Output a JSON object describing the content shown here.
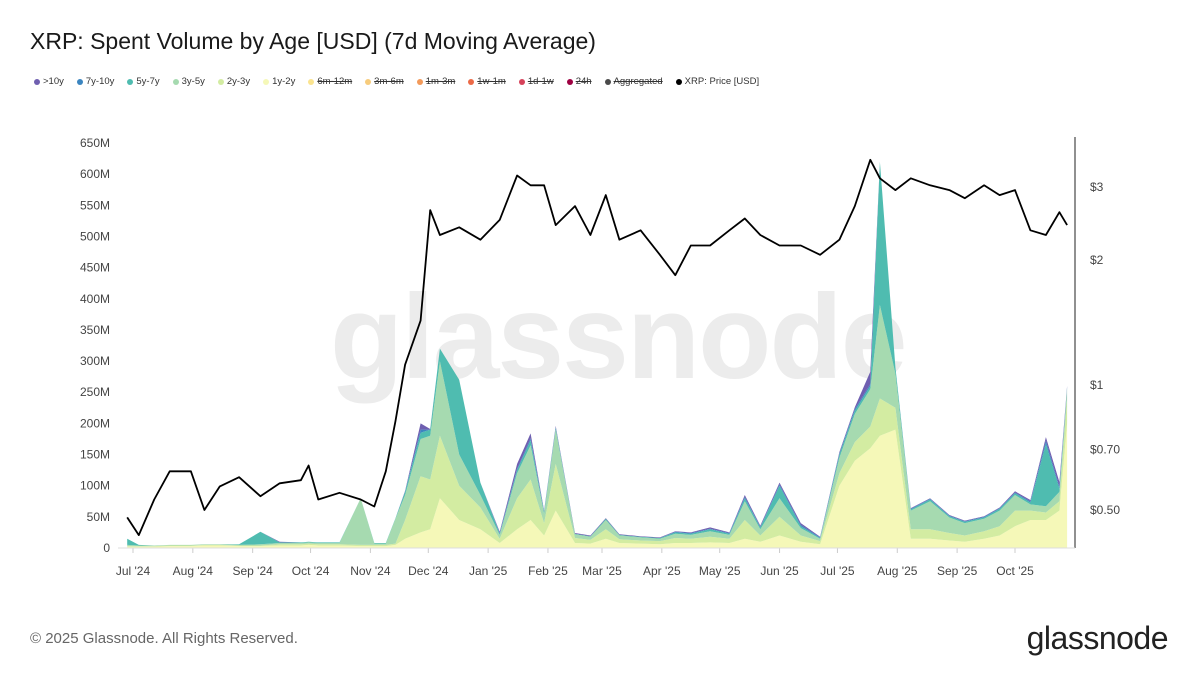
{
  "title": "XRP: Spent Volume by Age [USD] (7d Moving Average)",
  "legend": [
    {
      "label": ">10y",
      "color": "#6f5fb0",
      "active": true
    },
    {
      "label": "7y-10y",
      "color": "#3b85c0",
      "active": true
    },
    {
      "label": "5y-7y",
      "color": "#4fbcb0",
      "active": true
    },
    {
      "label": "3y-5y",
      "color": "#a6dab0",
      "active": true
    },
    {
      "label": "2y-3y",
      "color": "#d3eca2",
      "active": true
    },
    {
      "label": "1y-2y",
      "color": "#f5f8b8",
      "active": true
    },
    {
      "label": "6m-12m",
      "color": "#fbe48f",
      "active": false
    },
    {
      "label": "3m-6m",
      "color": "#f7cc7c",
      "active": false
    },
    {
      "label": "1m-3m",
      "color": "#f39a5a",
      "active": false
    },
    {
      "label": "1w-1m",
      "color": "#ec6a47",
      "active": false
    },
    {
      "label": "1d-1w",
      "color": "#d6425a",
      "active": false
    },
    {
      "label": "24h",
      "color": "#9e0142",
      "active": false
    },
    {
      "label": "Aggregated",
      "color": "#4a4a4a",
      "active": false
    },
    {
      "label": "XRP: Price [USD]",
      "color": "#000000",
      "active": true
    }
  ],
  "watermark": "glassnode",
  "footer": "© 2025 Glassnode. All Rights Reserved.",
  "logo": "glassnode",
  "chart_data": {
    "type": "area",
    "stacked": true,
    "title": "XRP: Spent Volume by Age [USD] (7d Moving Average)",
    "x": [
      "2024-06-28",
      "2024-07-04",
      "2024-07-12",
      "2024-07-20",
      "2024-07-31",
      "2024-08-07",
      "2024-08-15",
      "2024-08-25",
      "2024-09-05",
      "2024-09-15",
      "2024-09-26",
      "2024-09-30",
      "2024-10-05",
      "2024-10-16",
      "2024-10-27",
      "2024-11-03",
      "2024-11-09",
      "2024-11-14",
      "2024-11-19",
      "2024-11-27",
      "2024-12-02",
      "2024-12-07",
      "2024-12-17",
      "2024-12-28",
      "2025-01-07",
      "2025-01-16",
      "2025-01-23",
      "2025-01-30",
      "2025-02-05",
      "2025-02-15",
      "2025-02-23",
      "2025-03-03",
      "2025-03-10",
      "2025-03-21",
      "2025-03-31",
      "2025-04-08",
      "2025-04-16",
      "2025-04-26",
      "2025-05-06",
      "2025-05-14",
      "2025-05-22",
      "2025-06-01",
      "2025-06-12",
      "2025-06-22",
      "2025-07-02",
      "2025-07-10",
      "2025-07-18",
      "2025-07-23",
      "2025-07-31",
      "2025-08-08",
      "2025-08-18",
      "2025-08-28",
      "2025-09-05",
      "2025-09-15",
      "2025-09-23",
      "2025-10-01",
      "2025-10-09",
      "2025-10-17",
      "2025-10-24",
      "2025-10-28"
    ],
    "x_ticks": [
      "Jul '24",
      "Aug '24",
      "Sep '24",
      "Oct '24",
      "Nov '24",
      "Dec '24",
      "Jan '25",
      "Feb '25",
      "Mar '25",
      "Apr '25",
      "May '25",
      "Jun '25",
      "Jul '25",
      "Aug '25",
      "Sep '25",
      "Oct '25"
    ],
    "x_tick_dates": [
      "2024-07-01",
      "2024-08-01",
      "2024-09-01",
      "2024-10-01",
      "2024-11-01",
      "2024-12-01",
      "2025-01-01",
      "2025-02-01",
      "2025-03-01",
      "2025-04-01",
      "2025-05-01",
      "2025-06-01",
      "2025-07-01",
      "2025-08-01",
      "2025-09-01",
      "2025-10-01"
    ],
    "y_left": {
      "unit": "USD",
      "range": [
        0,
        650000000
      ],
      "ticks": [
        "0",
        "50M",
        "100M",
        "150M",
        "200M",
        "250M",
        "300M",
        "350M",
        "400M",
        "450M",
        "500M",
        "550M",
        "600M",
        "650M"
      ]
    },
    "y_right": {
      "scale": "log",
      "range": [
        0.405,
        3.96
      ],
      "ticks": [
        {
          "label": "$0.50",
          "value": 0.5
        },
        {
          "label": "$0.70",
          "value": 0.7
        },
        {
          "label": "$1",
          "value": 1
        },
        {
          "label": "$2",
          "value": 2
        },
        {
          "label": "$3",
          "value": 3
        }
      ]
    },
    "grid": false,
    "series_unit": "millions USD",
    "series": [
      {
        "name": "1y-2y",
        "values": [
          2,
          2,
          2,
          3,
          3,
          4,
          4,
          3,
          3,
          4,
          4,
          5,
          4,
          4,
          3,
          3,
          3,
          5,
          15,
          25,
          30,
          80,
          45,
          30,
          8,
          30,
          45,
          20,
          60,
          8,
          7,
          15,
          8,
          7,
          6,
          8,
          8,
          9,
          8,
          15,
          10,
          20,
          10,
          6,
          100,
          140,
          160,
          180,
          190,
          15,
          15,
          12,
          10,
          15,
          20,
          35,
          45,
          45,
          60,
          200
        ]
      },
      {
        "name": "2y-3y",
        "values": [
          1,
          1,
          1,
          1,
          1,
          1,
          1,
          1,
          1,
          2,
          2,
          2,
          2,
          2,
          2,
          2,
          2,
          2,
          30,
          90,
          80,
          100,
          55,
          35,
          7,
          50,
          65,
          20,
          75,
          8,
          6,
          15,
          6,
          5,
          5,
          8,
          7,
          9,
          7,
          30,
          10,
          30,
          10,
          5,
          20,
          30,
          35,
          60,
          35,
          15,
          15,
          12,
          10,
          12,
          15,
          25,
          15,
          12,
          15,
          40
        ]
      },
      {
        "name": "3y-5y",
        "values": [
          2,
          1,
          1,
          1,
          1,
          1,
          1,
          1,
          2,
          2,
          2,
          2,
          2,
          2,
          75,
          2,
          2,
          40,
          40,
          60,
          70,
          120,
          50,
          20,
          6,
          40,
          55,
          15,
          55,
          6,
          5,
          15,
          6,
          5,
          4,
          7,
          6,
          9,
          6,
          30,
          10,
          30,
          12,
          4,
          25,
          45,
          60,
          150,
          55,
          30,
          45,
          25,
          20,
          20,
          25,
          25,
          10,
          10,
          15,
          15
        ]
      },
      {
        "name": "5y-7y",
        "values": [
          10,
          1,
          0,
          0,
          0,
          0,
          0,
          1,
          20,
          1,
          1,
          1,
          1,
          1,
          0,
          1,
          1,
          1,
          5,
          10,
          10,
          20,
          120,
          20,
          2,
          5,
          8,
          3,
          3,
          1,
          1,
          2,
          1,
          1,
          1,
          2,
          2,
          3,
          2,
          5,
          3,
          20,
          3,
          1,
          5,
          5,
          5,
          230,
          10,
          2,
          3,
          2,
          2,
          2,
          3,
          3,
          3,
          100,
          5,
          2
        ]
      },
      {
        "name": "7y-10y",
        "values": [
          0,
          0,
          0,
          0,
          0,
          0,
          0,
          0,
          0,
          0,
          0,
          0,
          0,
          0,
          0,
          0,
          0,
          0,
          1,
          5,
          0,
          0,
          0,
          0,
          1,
          2,
          3,
          1,
          1,
          0,
          0,
          0,
          0,
          0,
          0,
          1,
          1,
          1,
          1,
          2,
          1,
          2,
          2,
          1,
          2,
          3,
          3,
          0,
          0,
          1,
          1,
          1,
          1,
          1,
          1,
          1,
          2,
          5,
          3,
          1
        ]
      },
      {
        "name": ">10y",
        "values": [
          0,
          0,
          0,
          0,
          0,
          0,
          0,
          0,
          0,
          1,
          0,
          0,
          0,
          0,
          0,
          0,
          0,
          0,
          1,
          10,
          1,
          0,
          0,
          0,
          2,
          8,
          8,
          1,
          2,
          1,
          1,
          1,
          1,
          1,
          1,
          1,
          1,
          2,
          1,
          3,
          2,
          3,
          3,
          1,
          2,
          3,
          20,
          0,
          0,
          1,
          1,
          1,
          1,
          1,
          1,
          2,
          2,
          6,
          8,
          2
        ]
      }
    ],
    "price": {
      "name": "XRP: Price [USD]",
      "values": [
        0.48,
        0.435,
        0.53,
        0.62,
        0.62,
        0.5,
        0.57,
        0.6,
        0.54,
        0.58,
        0.59,
        0.64,
        0.53,
        0.55,
        0.53,
        0.51,
        0.62,
        0.82,
        1.12,
        1.43,
        2.64,
        2.3,
        2.4,
        2.24,
        2.5,
        3.2,
        3.03,
        3.03,
        2.43,
        2.7,
        2.3,
        2.87,
        2.24,
        2.36,
        2.06,
        1.84,
        2.17,
        2.17,
        2.36,
        2.52,
        2.3,
        2.17,
        2.17,
        2.06,
        2.24,
        2.7,
        3.49,
        3.15,
        2.95,
        3.15,
        3.03,
        2.95,
        2.82,
        3.03,
        2.87,
        2.95,
        2.36,
        2.3,
        2.61,
        2.43
      ]
    }
  }
}
